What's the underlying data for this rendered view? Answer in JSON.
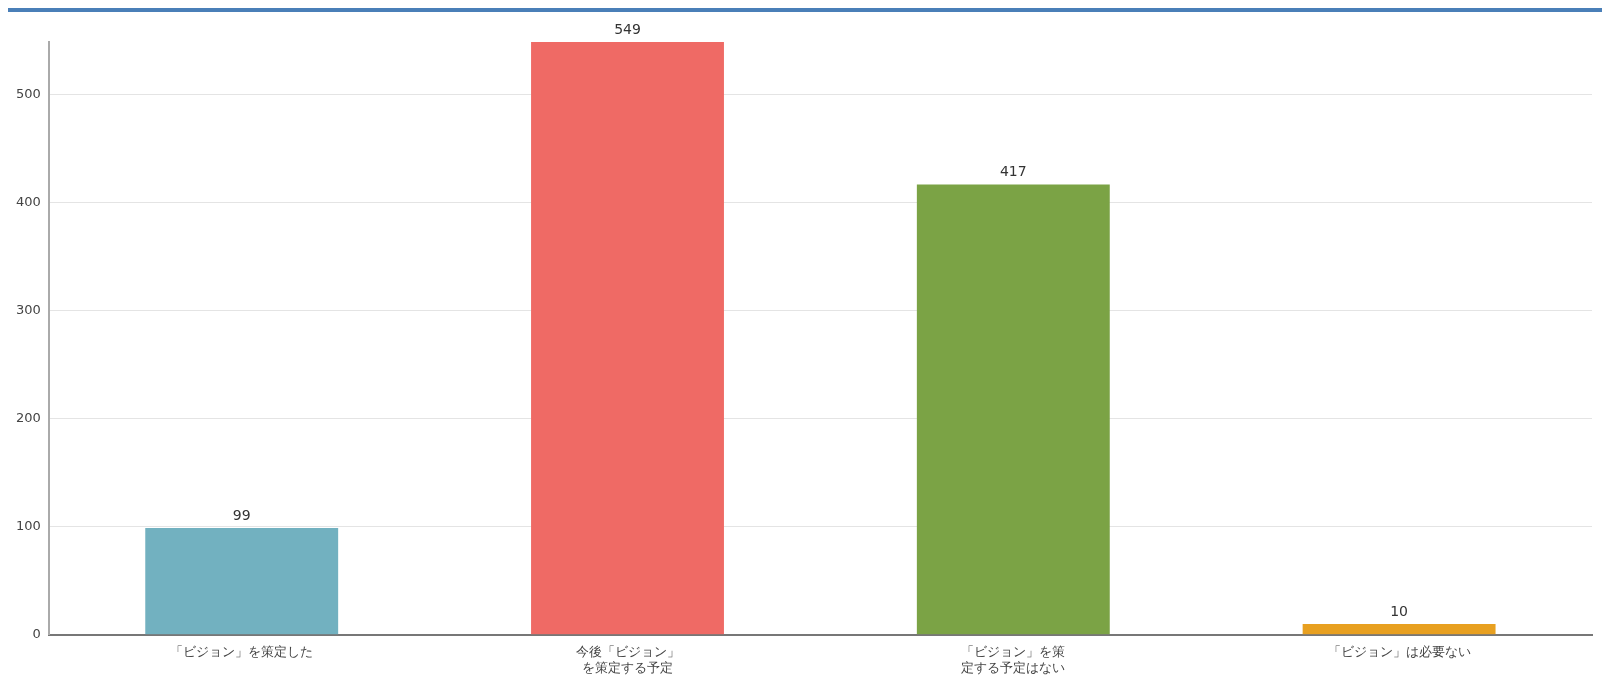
{
  "chart_data": {
    "type": "bar",
    "categories": [
      "「ビジョン」を策定した",
      "今後「ビジョン」を策定する予定",
      "「ビジョン」を策定する予定はない",
      "「ビジョン」は必要ない"
    ],
    "values": [
      99,
      549,
      417,
      10
    ],
    "colors": [
      "#72b1c0",
      "#ef6a65",
      "#7ba345",
      "#e8a020"
    ],
    "ylim": [
      0,
      549
    ],
    "yticks": [
      0,
      100,
      200,
      300,
      400,
      500
    ],
    "grid": "y",
    "data_labels": true,
    "legend": false
  }
}
